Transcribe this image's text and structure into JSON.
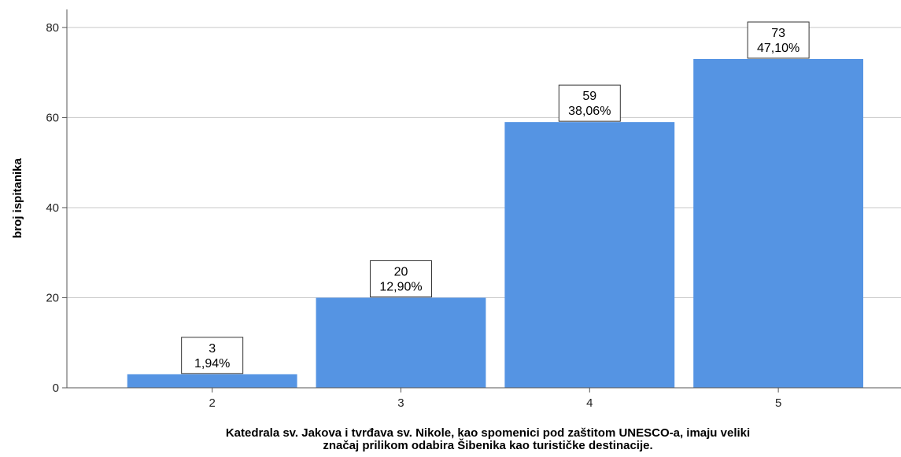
{
  "chart_data": {
    "type": "bar",
    "categories": [
      "2",
      "3",
      "4",
      "5"
    ],
    "values": [
      3,
      20,
      59,
      73
    ],
    "percent_labels": [
      "1,94%",
      "12,90%",
      "38,06%",
      "47,10%"
    ],
    "ylabel": "broj ispitanika",
    "xlabel_lines": [
      "Katedrala sv. Jakova i tvrđava sv. Nikole, kao spomenici pod zaštitom UNESCO-a, imaju veliki",
      "značaj prilikom odabira Šibenika kao turističke destinacije."
    ],
    "ylim": [
      0,
      84
    ],
    "yticks": [
      0,
      20,
      40,
      60,
      80
    ],
    "grid": true,
    "bar_color": "#5594e3"
  }
}
